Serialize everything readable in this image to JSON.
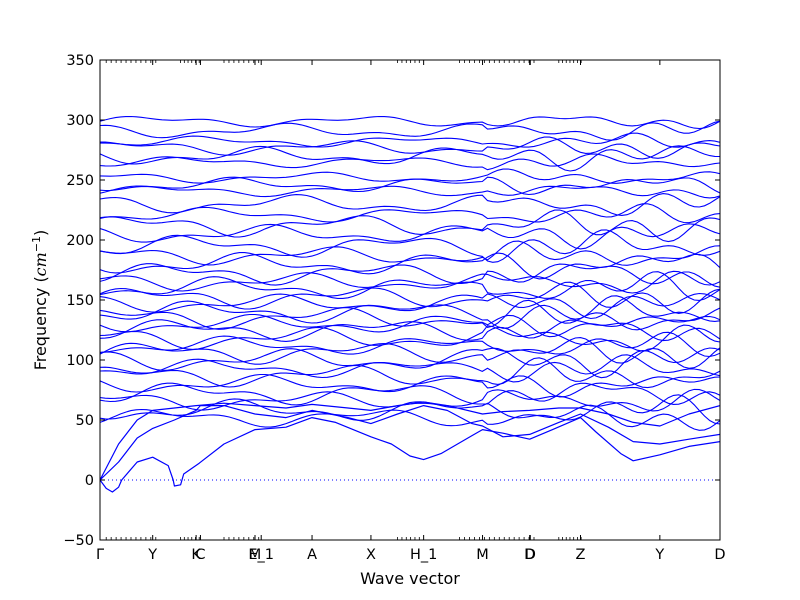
{
  "chart_data": {
    "type": "line",
    "xlabel": "Wave vector",
    "ylabel_text": "Frequency (",
    "ylabel_unit": "cm",
    "ylabel_exp": "−1",
    "ylabel_close": ")",
    "ylim": [
      -50,
      350
    ],
    "yticks": [
      -50,
      0,
      50,
      100,
      150,
      200,
      250,
      300,
      350
    ],
    "xlim": [
      0,
      1
    ],
    "xticks": [
      {
        "label": "Γ",
        "x": 0.0
      },
      {
        "label": "Y",
        "x": 0.085
      },
      {
        "label": "K",
        "x": 0.155
      },
      {
        "label": "C",
        "x": 0.162
      },
      {
        "label": "M",
        "x": 0.25
      },
      {
        "label": "E_1",
        "x": 0.26
      },
      {
        "label": "A",
        "x": 0.342
      },
      {
        "label": "X",
        "x": 0.437
      },
      {
        "label": "H_1",
        "x": 0.522
      },
      {
        "label": "M",
        "x": 0.617
      },
      {
        "label": "D",
        "x": 0.693
      },
      {
        "label": "D",
        "x": 0.694
      },
      {
        "label": "Z",
        "x": 0.775
      },
      {
        "label": "Y",
        "x": 0.903
      },
      {
        "label": "D",
        "x": 1.0
      }
    ],
    "zero_line": 0,
    "grid": false,
    "series_color": "#0000ff",
    "series_description_levels": [
      {
        "level": 299,
        "amp": 3
      },
      {
        "level": 291,
        "amp": 4
      },
      {
        "level": 282,
        "amp": 3
      },
      {
        "level": 277,
        "amp": 4
      },
      {
        "level": 270,
        "amp": 5
      },
      {
        "level": 265,
        "amp": 3
      },
      {
        "level": 252,
        "amp": 3
      },
      {
        "level": 246,
        "amp": 4
      },
      {
        "level": 241,
        "amp": 3
      },
      {
        "level": 230,
        "amp": 5
      },
      {
        "level": 221,
        "amp": 4
      },
      {
        "level": 212,
        "amp": 6
      },
      {
        "level": 205,
        "amp": 5
      },
      {
        "level": 195,
        "amp": 6
      },
      {
        "level": 187,
        "amp": 5
      },
      {
        "level": 180,
        "amp": 6
      },
      {
        "level": 172,
        "amp": 6
      },
      {
        "level": 165,
        "amp": 5
      },
      {
        "level": 160,
        "amp": 6
      },
      {
        "level": 152,
        "amp": 6
      },
      {
        "level": 147,
        "amp": 5
      },
      {
        "level": 140,
        "amp": 6
      },
      {
        "level": 135,
        "amp": 6
      },
      {
        "level": 130,
        "amp": 5
      },
      {
        "level": 125,
        "amp": 6
      },
      {
        "level": 118,
        "amp": 6
      },
      {
        "level": 112,
        "amp": 5
      },
      {
        "level": 106,
        "amp": 6
      },
      {
        "level": 100,
        "amp": 6
      },
      {
        "level": 93,
        "amp": 5
      },
      {
        "level": 87,
        "amp": 6
      },
      {
        "level": 80,
        "amp": 5
      },
      {
        "level": 72,
        "amp": 6
      },
      {
        "level": 66,
        "amp": 5
      },
      {
        "level": 58,
        "amp": 6
      },
      {
        "level": 52,
        "amp": 5
      }
    ],
    "acoustic_1": [
      [
        0,
        0
      ],
      [
        0.01,
        -7
      ],
      [
        0.02,
        -10
      ],
      [
        0.03,
        -6
      ],
      [
        0.035,
        0
      ],
      [
        0.06,
        15
      ],
      [
        0.085,
        19
      ],
      [
        0.11,
        12
      ],
      [
        0.118,
        0
      ],
      [
        0.12,
        -5
      ],
      [
        0.13,
        -4
      ],
      [
        0.135,
        5
      ],
      [
        0.16,
        14
      ],
      [
        0.2,
        30
      ],
      [
        0.25,
        42
      ],
      [
        0.3,
        44
      ],
      [
        0.342,
        52
      ],
      [
        0.38,
        48
      ],
      [
        0.437,
        36
      ],
      [
        0.47,
        30
      ],
      [
        0.5,
        20
      ],
      [
        0.522,
        17
      ],
      [
        0.55,
        22
      ],
      [
        0.6,
        37
      ],
      [
        0.617,
        42
      ],
      [
        0.65,
        39
      ],
      [
        0.693,
        34
      ],
      [
        0.73,
        42
      ],
      [
        0.775,
        52
      ],
      [
        0.8,
        40
      ],
      [
        0.84,
        22
      ],
      [
        0.86,
        16
      ],
      [
        0.903,
        21
      ],
      [
        0.95,
        28
      ],
      [
        1.0,
        32
      ]
    ],
    "acoustic_2": [
      [
        0,
        0
      ],
      [
        0.03,
        15
      ],
      [
        0.06,
        35
      ],
      [
        0.085,
        43
      ],
      [
        0.12,
        50
      ],
      [
        0.155,
        58
      ],
      [
        0.162,
        62
      ],
      [
        0.2,
        62
      ],
      [
        0.25,
        55
      ],
      [
        0.3,
        52
      ],
      [
        0.342,
        58
      ],
      [
        0.4,
        52
      ],
      [
        0.437,
        47
      ],
      [
        0.48,
        55
      ],
      [
        0.522,
        62
      ],
      [
        0.56,
        58
      ],
      [
        0.6,
        47
      ],
      [
        0.617,
        45
      ],
      [
        0.65,
        36
      ],
      [
        0.693,
        38
      ],
      [
        0.74,
        48
      ],
      [
        0.775,
        55
      ],
      [
        0.82,
        44
      ],
      [
        0.86,
        32
      ],
      [
        0.903,
        30
      ],
      [
        0.95,
        34
      ],
      [
        1.0,
        38
      ]
    ],
    "acoustic_3": [
      [
        0,
        0
      ],
      [
        0.03,
        30
      ],
      [
        0.06,
        50
      ],
      [
        0.085,
        58
      ],
      [
        0.12,
        60
      ],
      [
        0.155,
        62
      ],
      [
        0.2,
        64
      ],
      [
        0.25,
        62
      ],
      [
        0.3,
        60
      ],
      [
        0.342,
        63
      ],
      [
        0.4,
        60
      ],
      [
        0.437,
        58
      ],
      [
        0.48,
        62
      ],
      [
        0.522,
        65
      ],
      [
        0.56,
        62
      ],
      [
        0.617,
        55
      ],
      [
        0.65,
        57
      ],
      [
        0.693,
        58
      ],
      [
        0.74,
        60
      ],
      [
        0.775,
        60
      ],
      [
        0.82,
        55
      ],
      [
        0.86,
        48
      ],
      [
        0.903,
        45
      ],
      [
        0.95,
        55
      ],
      [
        1.0,
        62
      ]
    ]
  }
}
